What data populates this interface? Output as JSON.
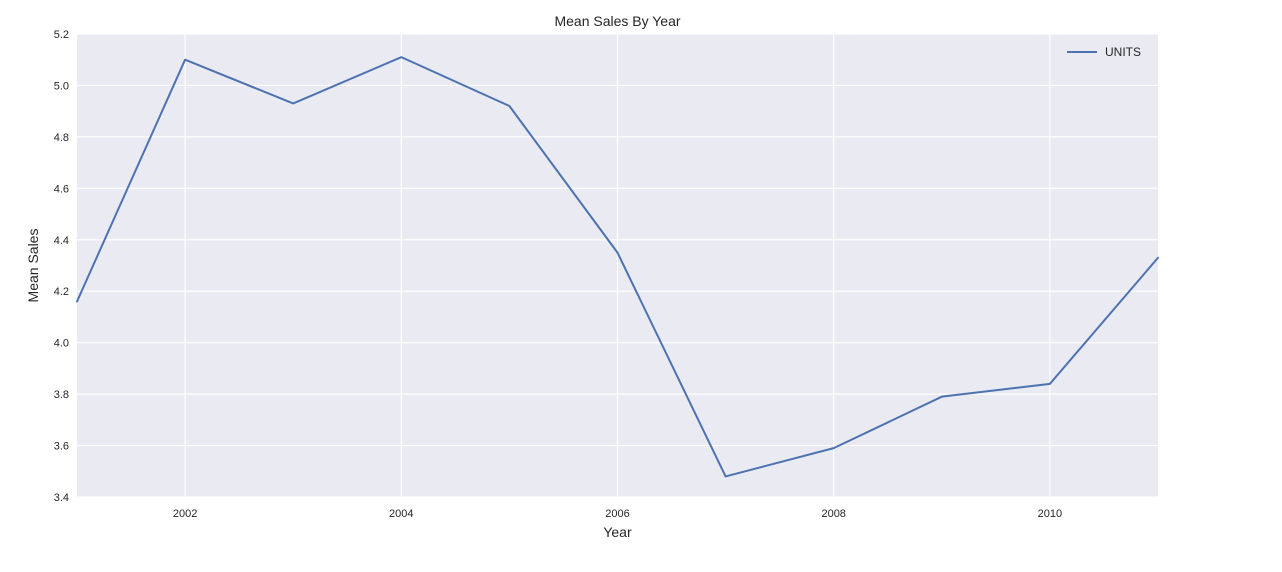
{
  "chart_data": {
    "type": "line",
    "title": "Mean Sales By Year",
    "xlabel": "Year",
    "ylabel": "Mean Sales",
    "xlim": [
      2001,
      2011
    ],
    "ylim": [
      3.4,
      5.2
    ],
    "x_ticks": [
      2002,
      2004,
      2006,
      2008,
      2010
    ],
    "x_tick_labels": [
      "2002",
      "2004",
      "2006",
      "2008",
      "2010"
    ],
    "y_ticks": [
      3.4,
      3.6,
      3.8,
      4.0,
      4.2,
      4.4,
      4.6,
      4.8,
      5.0,
      5.2
    ],
    "y_tick_labels": [
      "3.4",
      "3.6",
      "3.8",
      "4.0",
      "4.2",
      "4.4",
      "4.6",
      "4.8",
      "5.0",
      "5.2"
    ],
    "grid": true,
    "legend_position": "top-right",
    "background_color": "#eaeaf2",
    "grid_color": "#ffffff",
    "series": [
      {
        "name": "UNITS",
        "color": "#4c72b0",
        "x": [
          2001,
          2002,
          2003,
          2004,
          2005,
          2006,
          2007,
          2008,
          2009,
          2010,
          2011
        ],
        "y": [
          4.16,
          5.1,
          4.93,
          5.11,
          4.92,
          4.35,
          3.48,
          3.59,
          3.79,
          3.84,
          4.33
        ]
      }
    ]
  }
}
